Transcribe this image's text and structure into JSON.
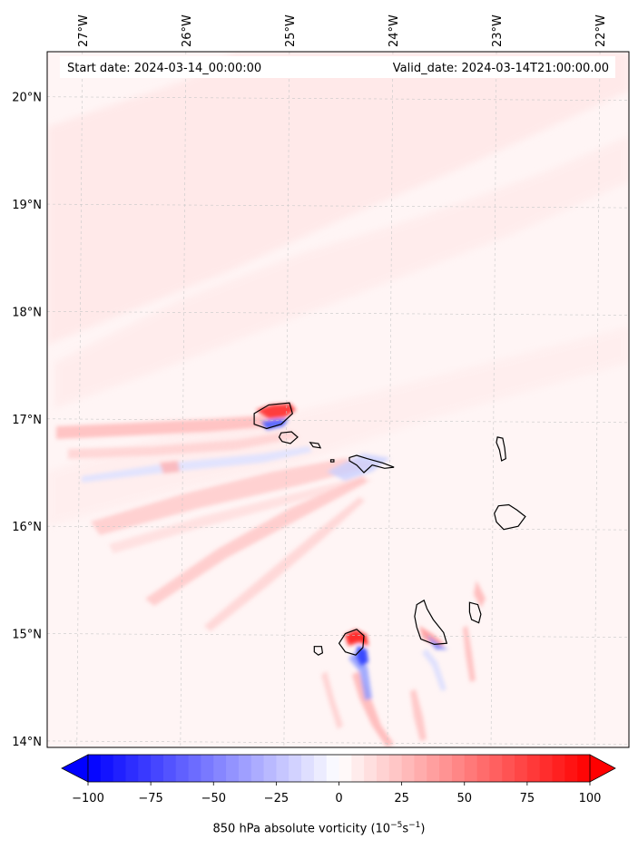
{
  "header": {
    "start_label": "Start date: 2024-03-14_00:00:00",
    "valid_label": "Valid_date: 2024-03-14T21:00:00.00"
  },
  "map": {
    "lon_range": [
      -27.34,
      -21.72
    ],
    "lat_range": [
      13.94,
      20.42
    ],
    "lon_ticks": [
      {
        "value": -27,
        "label": "27°W"
      },
      {
        "value": -26,
        "label": "26°W"
      },
      {
        "value": -25,
        "label": "25°W"
      },
      {
        "value": -24,
        "label": "24°W"
      },
      {
        "value": -23,
        "label": "23°W"
      },
      {
        "value": -22,
        "label": "22°W"
      }
    ],
    "lat_ticks": [
      {
        "value": 20,
        "label": "20°N"
      },
      {
        "value": 19,
        "label": "19°N"
      },
      {
        "value": 18,
        "label": "18°N"
      },
      {
        "value": 17,
        "label": "17°N"
      },
      {
        "value": 16,
        "label": "16°N"
      },
      {
        "value": 15,
        "label": "15°N"
      },
      {
        "value": 14,
        "label": "14°N"
      }
    ],
    "gridlines": true,
    "background_color": "#fff5f5",
    "islands": [
      {
        "name": "Santo Antão",
        "outline": [
          [
            -25.34,
            17.05
          ],
          [
            -25.2,
            17.13
          ],
          [
            -25.0,
            17.15
          ],
          [
            -24.97,
            17.05
          ],
          [
            -25.08,
            16.95
          ],
          [
            -25.22,
            16.91
          ],
          [
            -25.34,
            16.95
          ]
        ]
      },
      {
        "name": "São Vicente",
        "outline": [
          [
            -25.08,
            16.87
          ],
          [
            -24.98,
            16.88
          ],
          [
            -24.92,
            16.83
          ],
          [
            -24.99,
            16.77
          ],
          [
            -25.07,
            16.79
          ],
          [
            -25.1,
            16.83
          ]
        ]
      },
      {
        "name": "Santa Luzia",
        "outline": [
          [
            -24.8,
            16.78
          ],
          [
            -24.72,
            16.77
          ],
          [
            -24.7,
            16.73
          ],
          [
            -24.77,
            16.74
          ]
        ]
      },
      {
        "name": "Raso",
        "outline": [
          [
            -24.6,
            16.62
          ],
          [
            -24.57,
            16.62
          ],
          [
            -24.57,
            16.6
          ],
          [
            -24.6,
            16.6
          ]
        ]
      },
      {
        "name": "São Nicolau",
        "outline": [
          [
            -24.42,
            16.64
          ],
          [
            -24.35,
            16.66
          ],
          [
            -24.25,
            16.63
          ],
          [
            -24.1,
            16.59
          ],
          [
            -23.99,
            16.55
          ],
          [
            -24.08,
            16.54
          ],
          [
            -24.2,
            16.57
          ],
          [
            -24.28,
            16.5
          ],
          [
            -24.35,
            16.57
          ],
          [
            -24.42,
            16.61
          ]
        ]
      },
      {
        "name": "Sal",
        "outline": [
          [
            -22.99,
            16.83
          ],
          [
            -22.94,
            16.82
          ],
          [
            -22.92,
            16.73
          ],
          [
            -22.91,
            16.63
          ],
          [
            -22.95,
            16.61
          ],
          [
            -22.97,
            16.71
          ],
          [
            -23.0,
            16.78
          ]
        ]
      },
      {
        "name": "Boa Vista",
        "outline": [
          [
            -22.98,
            16.19
          ],
          [
            -22.88,
            16.2
          ],
          [
            -22.8,
            16.15
          ],
          [
            -22.72,
            16.09
          ],
          [
            -22.79,
            16.0
          ],
          [
            -22.93,
            15.97
          ],
          [
            -23.0,
            16.04
          ],
          [
            -23.02,
            16.12
          ]
        ]
      },
      {
        "name": "Santiago",
        "outline": [
          [
            -23.77,
            15.27
          ],
          [
            -23.7,
            15.31
          ],
          [
            -23.67,
            15.23
          ],
          [
            -23.61,
            15.13
          ],
          [
            -23.51,
            15.01
          ],
          [
            -23.48,
            14.91
          ],
          [
            -23.6,
            14.9
          ],
          [
            -23.73,
            14.95
          ],
          [
            -23.77,
            15.06
          ],
          [
            -23.79,
            15.16
          ]
        ]
      },
      {
        "name": "Maio",
        "outline": [
          [
            -23.26,
            15.29
          ],
          [
            -23.18,
            15.27
          ],
          [
            -23.15,
            15.18
          ],
          [
            -23.17,
            15.1
          ],
          [
            -23.24,
            15.13
          ],
          [
            -23.26,
            15.2
          ]
        ]
      },
      {
        "name": "Fogo",
        "outline": [
          [
            -24.46,
            15.0
          ],
          [
            -24.35,
            15.04
          ],
          [
            -24.28,
            14.98
          ],
          [
            -24.29,
            14.87
          ],
          [
            -24.36,
            14.8
          ],
          [
            -24.46,
            14.83
          ],
          [
            -24.52,
            14.91
          ]
        ]
      },
      {
        "name": "Brava",
        "outline": [
          [
            -24.76,
            14.88
          ],
          [
            -24.69,
            14.88
          ],
          [
            -24.68,
            14.82
          ],
          [
            -24.72,
            14.8
          ],
          [
            -24.76,
            14.83
          ]
        ]
      }
    ]
  },
  "colorbar": {
    "ticks": [
      {
        "value": -100,
        "label": "−100"
      },
      {
        "value": -75,
        "label": "−75"
      },
      {
        "value": -50,
        "label": "−50"
      },
      {
        "value": -25,
        "label": "−25"
      },
      {
        "value": 0,
        "label": "0"
      },
      {
        "value": 25,
        "label": "25"
      },
      {
        "value": 50,
        "label": "50"
      },
      {
        "value": 75,
        "label": "75"
      },
      {
        "value": 100,
        "label": "100"
      }
    ],
    "range": [
      -100,
      100
    ],
    "levels": 40,
    "cmap": "bwr",
    "label_main": "850 hPa absolute vorticity (10",
    "label_exp1": "−5",
    "label_mid": "s",
    "label_exp2": "−1",
    "label_end": ")"
  },
  "colors": {
    "negative": "#0000ff",
    "positive": "#ff0000",
    "coastline": "#000000",
    "grid": "#c8c8c8"
  }
}
